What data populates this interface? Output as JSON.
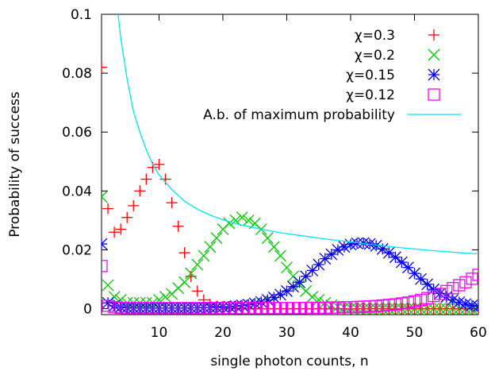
{
  "chart_data": {
    "type": "scatter",
    "title": "",
    "xlabel": "single photon counts, n",
    "ylabel": "Probability of success",
    "xlim": [
      1,
      60
    ],
    "ylim": [
      -0.002,
      0.1
    ],
    "xticks": [
      "10",
      "20",
      "30",
      "40",
      "50",
      "60"
    ],
    "xtick_values": [
      10,
      20,
      30,
      40,
      50,
      60
    ],
    "yticks": [
      "0",
      "0.02",
      "0.04",
      "0.06",
      "0.08",
      "0.1"
    ],
    "ytick_values": [
      0,
      0.02,
      0.04,
      0.06,
      0.08,
      0.1
    ],
    "grid": false,
    "legend_position": "top-right",
    "series": [
      {
        "name": "χ=0.3",
        "marker": "plus",
        "color": "#ff0000",
        "x": [
          1,
          2,
          3,
          4,
          5,
          6,
          7,
          8,
          9,
          10,
          11,
          12,
          13,
          14,
          15,
          16,
          17,
          18,
          19,
          20,
          21,
          22,
          23,
          24,
          25,
          26,
          27,
          28,
          29,
          30,
          31,
          32,
          33,
          34,
          35,
          36,
          37,
          38,
          39,
          40,
          41,
          42,
          43,
          44,
          45,
          46,
          47,
          48,
          49,
          50,
          51,
          52,
          53,
          54,
          55,
          56,
          57,
          58,
          59,
          60
        ],
        "y": [
          0.082,
          0.034,
          0.026,
          0.027,
          0.031,
          0.035,
          0.04,
          0.044,
          0.048,
          0.049,
          0.044,
          0.036,
          0.028,
          0.019,
          0.011,
          0.006,
          0.003,
          0.0015,
          0.0008,
          0.0004,
          0.0002,
          0.0001,
          0,
          0,
          0,
          0,
          0,
          0,
          0,
          0,
          0,
          0,
          0,
          0,
          0,
          0,
          0,
          0,
          0,
          0,
          0,
          0,
          0,
          0,
          0,
          0,
          0,
          0,
          0,
          0,
          0,
          0,
          0,
          0,
          0,
          0,
          0,
          0,
          0,
          0
        ]
      },
      {
        "name": "χ=0.2",
        "marker": "cross",
        "color": "#00cc00",
        "x": [
          1,
          2,
          3,
          4,
          5,
          6,
          7,
          8,
          9,
          10,
          11,
          12,
          13,
          14,
          15,
          16,
          17,
          18,
          19,
          20,
          21,
          22,
          23,
          24,
          25,
          26,
          27,
          28,
          29,
          30,
          31,
          32,
          33,
          34,
          35,
          36,
          37,
          38,
          39,
          40,
          41,
          42,
          43,
          44,
          45,
          46,
          47,
          48,
          49,
          50,
          51,
          52,
          53,
          54,
          55,
          56,
          57,
          58,
          59,
          60
        ],
        "y": [
          0.038,
          0.008,
          0.004,
          0.003,
          0.002,
          0.002,
          0.002,
          0.002,
          0.002,
          0.003,
          0.004,
          0.005,
          0.007,
          0.009,
          0.012,
          0.015,
          0.018,
          0.021,
          0.024,
          0.027,
          0.029,
          0.03,
          0.031,
          0.03,
          0.029,
          0.027,
          0.024,
          0.021,
          0.018,
          0.014,
          0.011,
          0.008,
          0.006,
          0.004,
          0.003,
          0.002,
          0.0012,
          0.0007,
          0.0004,
          0.0002,
          0.0001,
          0,
          0,
          0,
          0,
          0,
          0,
          0,
          0,
          0,
          0,
          0,
          0,
          0,
          0,
          0,
          0,
          0,
          0,
          0
        ]
      },
      {
        "name": "χ=0.15",
        "marker": "star",
        "color": "#0000ee",
        "x": [
          1,
          2,
          3,
          4,
          5,
          6,
          7,
          8,
          9,
          10,
          11,
          12,
          13,
          14,
          15,
          16,
          17,
          18,
          19,
          20,
          21,
          22,
          23,
          24,
          25,
          26,
          27,
          28,
          29,
          30,
          31,
          32,
          33,
          34,
          35,
          36,
          37,
          38,
          39,
          40,
          41,
          42,
          43,
          44,
          45,
          46,
          47,
          48,
          49,
          50,
          51,
          52,
          53,
          54,
          55,
          56,
          57,
          58,
          59,
          60
        ],
        "y": [
          0.022,
          0.002,
          0.001,
          0.0005,
          0.0003,
          0.0002,
          0.0002,
          0.0002,
          0.0002,
          0.0002,
          0.0002,
          0.0002,
          0.0002,
          0.0002,
          0.0003,
          0.0003,
          0.0004,
          0.0004,
          0.0005,
          0.0006,
          0.0007,
          0.0009,
          0.0011,
          0.0014,
          0.0018,
          0.0023,
          0.003,
          0.0038,
          0.0048,
          0.006,
          0.0075,
          0.009,
          0.011,
          0.013,
          0.015,
          0.017,
          0.0185,
          0.02,
          0.021,
          0.0218,
          0.0222,
          0.0223,
          0.022,
          0.0214,
          0.0203,
          0.019,
          0.0175,
          0.0158,
          0.014,
          0.012,
          0.0101,
          0.0083,
          0.0066,
          0.0052,
          0.004,
          0.003,
          0.0022,
          0.0016,
          0.0011,
          0.0008
        ]
      },
      {
        "name": "χ=0.12",
        "marker": "square",
        "color": "#ff00ff",
        "x": [
          1,
          2,
          3,
          4,
          5,
          6,
          7,
          8,
          9,
          10,
          11,
          12,
          13,
          14,
          15,
          16,
          17,
          18,
          19,
          20,
          21,
          22,
          23,
          24,
          25,
          26,
          27,
          28,
          29,
          30,
          31,
          32,
          33,
          34,
          35,
          36,
          37,
          38,
          39,
          40,
          41,
          42,
          43,
          44,
          45,
          46,
          47,
          48,
          49,
          50,
          51,
          52,
          53,
          54,
          55,
          56,
          57,
          58,
          59,
          60
        ],
        "y": [
          0.0145,
          0.001,
          0.0005,
          0.0003,
          0.0002,
          0.0002,
          0.0002,
          0.0002,
          0.0002,
          0.0002,
          0.0002,
          0.0002,
          0.0002,
          0.0002,
          0.0002,
          0.0002,
          0.0002,
          0.0002,
          0.0002,
          0.0002,
          0.0002,
          0.0002,
          0.0002,
          0.0002,
          0.0002,
          0.0002,
          0.0002,
          0.0002,
          0.0002,
          0.0002,
          0.0002,
          0.0002,
          0.0003,
          0.0003,
          0.0003,
          0.0003,
          0.0004,
          0.0004,
          0.0005,
          0.0005,
          0.0006,
          0.0007,
          0.0008,
          0.0009,
          0.0011,
          0.0013,
          0.0015,
          0.0018,
          0.0021,
          0.0025,
          0.003,
          0.0036,
          0.0043,
          0.005,
          0.006,
          0.007,
          0.008,
          0.009,
          0.0102,
          0.0115
        ]
      },
      {
        "name": "A.b. of maximum probability",
        "marker": "line",
        "color": "#00e5ee",
        "x": [
          3.6,
          4,
          5,
          6,
          7,
          8,
          9,
          10,
          12,
          14,
          16,
          18,
          20,
          22,
          24,
          26,
          28,
          30,
          33,
          36,
          40,
          44,
          48,
          52,
          56,
          60
        ],
        "y": [
          0.1,
          0.092,
          0.078,
          0.067,
          0.06,
          0.054,
          0.049,
          0.0455,
          0.0405,
          0.0365,
          0.0338,
          0.0318,
          0.0302,
          0.0289,
          0.0279,
          0.027,
          0.0262,
          0.0255,
          0.0246,
          0.0237,
          0.0227,
          0.0216,
          0.0207,
          0.0199,
          0.0192,
          0.0186
        ]
      }
    ]
  }
}
